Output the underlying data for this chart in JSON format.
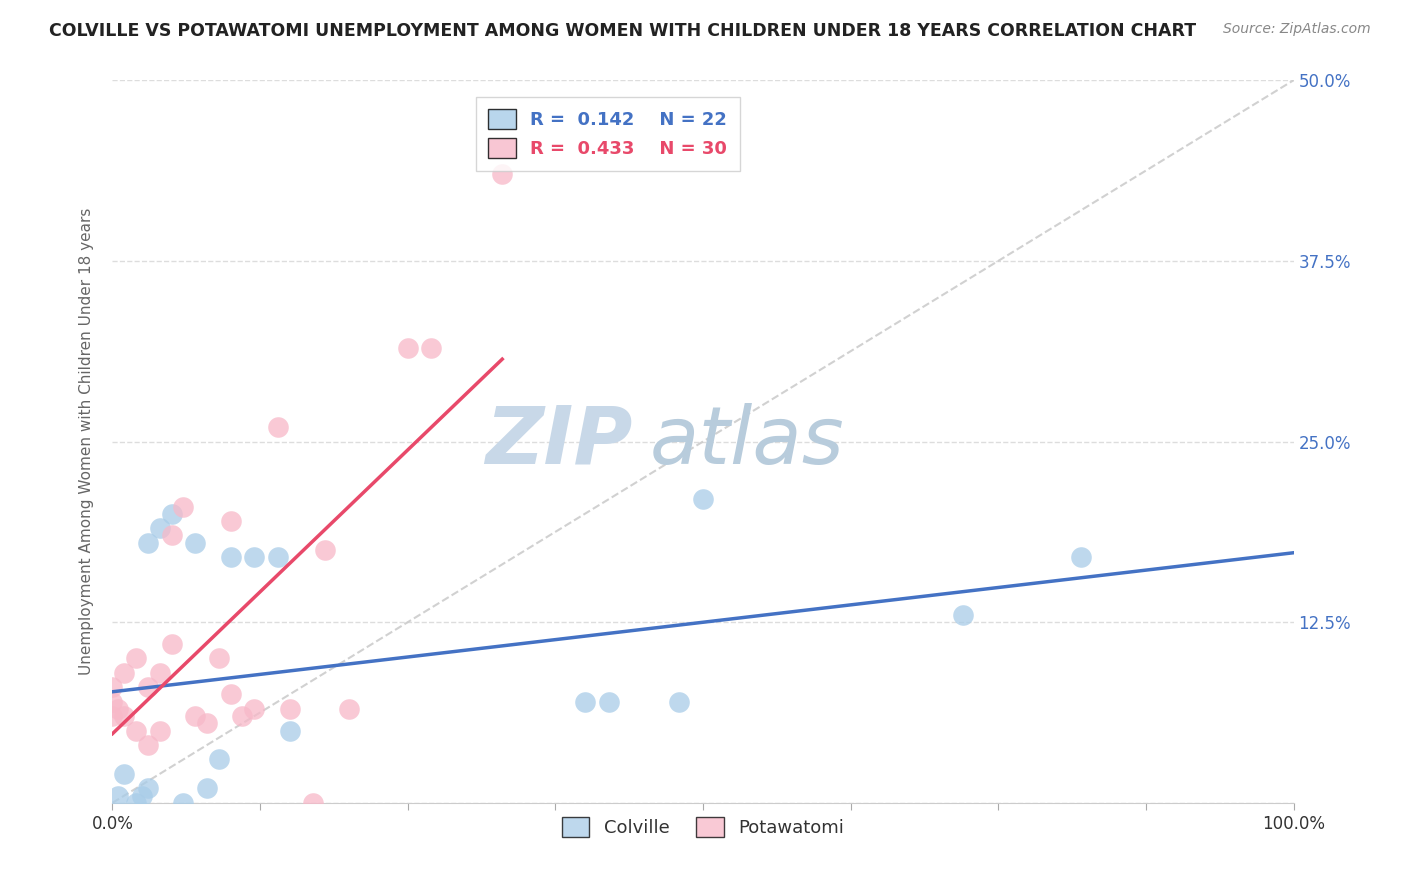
{
  "title": "COLVILLE VS POTAWATOMI UNEMPLOYMENT AMONG WOMEN WITH CHILDREN UNDER 18 YEARS CORRELATION CHART",
  "source": "Source: ZipAtlas.com",
  "ylabel": "Unemployment Among Women with Children Under 18 years",
  "xlim": [
    0,
    1.0
  ],
  "ylim": [
    0,
    0.5
  ],
  "xticks": [
    0.0,
    0.125,
    0.25,
    0.375,
    0.5,
    0.625,
    0.75,
    0.875,
    1.0
  ],
  "xticklabels": [
    "0.0%",
    "",
    "",
    "",
    "",
    "",
    "",
    "",
    "100.0%"
  ],
  "yticks": [
    0.0,
    0.125,
    0.25,
    0.375,
    0.5
  ],
  "yticklabels": [
    "",
    "12.5%",
    "25.0%",
    "37.5%",
    "50.0%"
  ],
  "colville_R": 0.142,
  "colville_N": 22,
  "potawatomi_R": 0.433,
  "potawatomi_N": 30,
  "colville_color": "#a8cce8",
  "potawatomi_color": "#f7b8c8",
  "colville_line_color": "#4472c4",
  "potawatomi_line_color": "#e8496a",
  "diagonal_color": "#cccccc",
  "colville_x": [
    0.005,
    0.01,
    0.02,
    0.025,
    0.03,
    0.03,
    0.04,
    0.05,
    0.06,
    0.07,
    0.08,
    0.09,
    0.1,
    0.12,
    0.14,
    0.15,
    0.4,
    0.42,
    0.48,
    0.5,
    0.72,
    0.82
  ],
  "colville_y": [
    0.005,
    0.02,
    0.0,
    0.005,
    0.01,
    0.18,
    0.19,
    0.2,
    0.0,
    0.18,
    0.01,
    0.03,
    0.17,
    0.17,
    0.17,
    0.05,
    0.07,
    0.07,
    0.07,
    0.21,
    0.13,
    0.17
  ],
  "potawatomi_x": [
    0.0,
    0.0,
    0.0,
    0.005,
    0.01,
    0.01,
    0.02,
    0.02,
    0.03,
    0.03,
    0.04,
    0.04,
    0.05,
    0.05,
    0.06,
    0.07,
    0.08,
    0.09,
    0.1,
    0.1,
    0.11,
    0.12,
    0.14,
    0.15,
    0.17,
    0.18,
    0.2,
    0.25,
    0.27,
    0.33
  ],
  "potawatomi_y": [
    0.06,
    0.07,
    0.08,
    0.065,
    0.06,
    0.09,
    0.05,
    0.1,
    0.04,
    0.08,
    0.05,
    0.09,
    0.11,
    0.185,
    0.205,
    0.06,
    0.055,
    0.1,
    0.075,
    0.195,
    0.06,
    0.065,
    0.26,
    0.065,
    0.0,
    0.175,
    0.065,
    0.315,
    0.315,
    0.435
  ],
  "watermark_top": "ZIP",
  "watermark_bottom": "atlas",
  "watermark_color_top": "#c8d8e8",
  "watermark_color_bottom": "#b0c8e0",
  "background_color": "#ffffff",
  "grid_color": "#dddddd"
}
